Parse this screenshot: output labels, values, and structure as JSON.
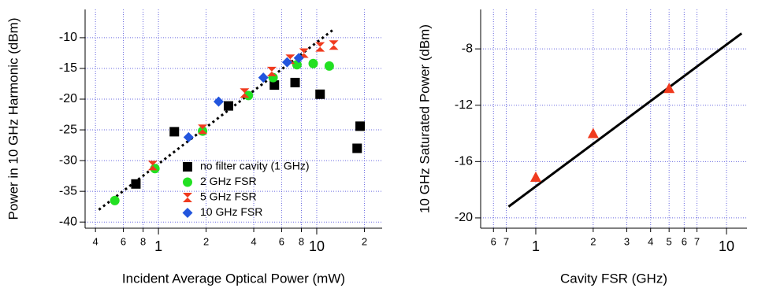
{
  "chart_data": [
    {
      "type": "scatter",
      "x_label": "Incident Average Optical Power (mW)",
      "y_label": "Power in 10 GHz Harmonic (dBm)",
      "x_log": true,
      "grid": true,
      "legend": "bottom-right",
      "xlim": [
        0.344,
        25.9
      ],
      "ylim": [
        -41,
        -5.4
      ],
      "xticks": [
        {
          "value": 0.4,
          "label": "4"
        },
        {
          "value": 0.6,
          "label": "6"
        },
        {
          "value": 0.8,
          "label": "8"
        },
        1,
        {
          "value": 2,
          "label": "2"
        },
        {
          "value": 4,
          "label": "4"
        },
        {
          "value": 6,
          "label": "6"
        },
        {
          "value": 8,
          "label": "8"
        },
        10,
        {
          "value": 20,
          "label": "2"
        }
      ],
      "yticks": [
        -40,
        -35,
        -30,
        -25,
        -20,
        -15,
        -10
      ],
      "fit": {
        "x": [
          0.42,
          13
        ],
        "y": [
          -38,
          -8.5
        ],
        "color": "#000000"
      },
      "series": [
        {
          "name": "no filter cavity (1 GHz)",
          "color": "#000000",
          "marker": "square",
          "x": [
            0.72,
            1.26,
            2.77,
            5.4,
            7.3,
            10.5,
            18.8,
            18.0
          ],
          "values": [
            -33.8,
            -25.3,
            -21.1,
            -17.7,
            -17.3,
            -19.2,
            -24.4,
            -28
          ]
        },
        {
          "name": "2 GHz FSR",
          "color": "#22e022",
          "marker": "circle",
          "x": [
            0.53,
            0.95,
            1.9,
            3.7,
            5.3,
            7.5,
            9.5,
            12
          ],
          "values": [
            -36.5,
            -31.3,
            -25.2,
            -19.4,
            -16.5,
            -14.4,
            -14.2,
            -14.6
          ]
        },
        {
          "name": "5 GHz FSR",
          "color": "#f03a1e",
          "marker": "bowtie",
          "x": [
            0.92,
            1.9,
            3.5,
            5.2,
            6.8,
            8.3,
            10.5,
            12.8
          ],
          "values": [
            -30.8,
            -24.9,
            -19,
            -15.5,
            -13.5,
            -12.5,
            -11.5,
            -11.2
          ]
        },
        {
          "name": "10 GHz FSR",
          "color": "#2255dd",
          "marker": "diamond",
          "x": [
            1.55,
            2.4,
            4.6,
            6.5,
            7.7
          ],
          "values": [
            -26.2,
            -20.4,
            -16.5,
            -14,
            -13.3
          ]
        }
      ]
    },
    {
      "type": "scatter",
      "x_label": "Cavity FSR (GHz)",
      "y_label": "10 GHz Saturated Power (dBm)",
      "x_log": true,
      "grid": true,
      "xlim": [
        0.514,
        12.8
      ],
      "ylim": [
        -20.73,
        -5.2
      ],
      "xticks": [
        {
          "value": 0.6,
          "label": "6"
        },
        {
          "value": 0.7,
          "label": "7"
        },
        1,
        {
          "value": 2,
          "label": "2"
        },
        {
          "value": 3,
          "label": "3"
        },
        {
          "value": 4,
          "label": "4"
        },
        {
          "value": 5,
          "label": "5"
        },
        {
          "value": 6,
          "label": "6"
        },
        {
          "value": 7,
          "label": "7"
        },
        10
      ],
      "yticks": [
        -20,
        -16,
        -12,
        -8
      ],
      "fit": {
        "x": [
          0.72,
          12
        ],
        "y": [
          -19.2,
          -6.9
        ],
        "color": "#000000"
      },
      "series": [
        {
          "color": "#f03a1e",
          "marker": "triangle",
          "x": [
            1,
            2,
            5
          ],
          "values": [
            -17.1,
            -14,
            -10.8
          ]
        }
      ]
    }
  ]
}
